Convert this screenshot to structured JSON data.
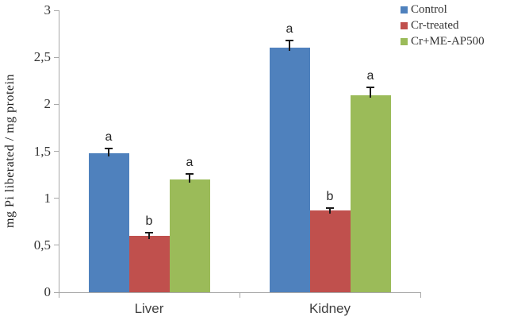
{
  "chart_data": {
    "type": "bar",
    "title": "",
    "xlabel": "",
    "ylabel": "mg Pi liberated / mg protein",
    "categories": [
      "Liver",
      "Kidney"
    ],
    "series": [
      {
        "name": "Control",
        "color": "#4F81BD",
        "values": [
          1.48,
          2.6
        ],
        "errors": [
          0.05,
          0.08
        ],
        "letters": [
          "a",
          "a"
        ]
      },
      {
        "name": "Cr-treated",
        "color": "#C0504D",
        "values": [
          0.6,
          0.87
        ],
        "errors": [
          0.03,
          0.03
        ],
        "letters": [
          "b",
          "b"
        ]
      },
      {
        "name": "Cr+ME-AP500",
        "color": "#9BBB59",
        "values": [
          1.2,
          2.1
        ],
        "errors": [
          0.06,
          0.08
        ],
        "letters": [
          "a",
          "a"
        ]
      }
    ],
    "ylim": [
      0,
      3
    ],
    "ytick_step": 0.5,
    "ytick_labels": [
      "0",
      "0,5",
      "1",
      "1,5",
      "2",
      "2,5",
      "3"
    ],
    "decimal_separator": ",",
    "grid": false,
    "legend_position": "top-right",
    "error_bars": true,
    "axis_color": "#a8a8a8",
    "background_color": "#ffffff"
  }
}
